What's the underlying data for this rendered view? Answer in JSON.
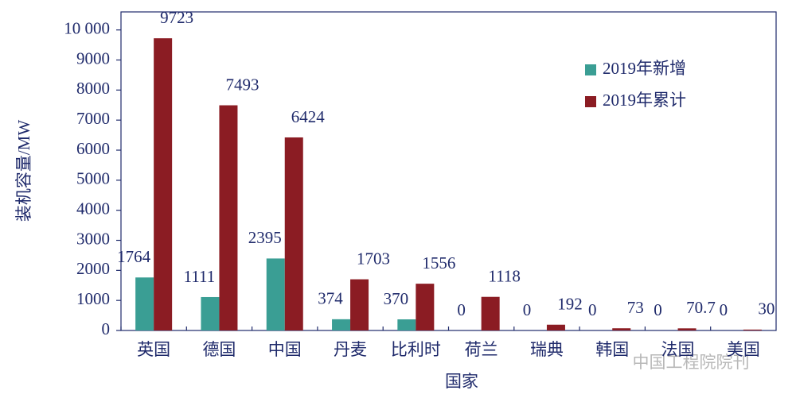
{
  "chart_data": {
    "type": "bar",
    "categories": [
      "英国",
      "德国",
      "中国",
      "丹麦",
      "比利时",
      "荷兰",
      "瑞典",
      "韩国",
      "法国",
      "美国"
    ],
    "series": [
      {
        "name": "2019年新增",
        "color": "#3a9e94",
        "values": [
          1764,
          1111,
          2395,
          374,
          370,
          0,
          0,
          0,
          0,
          0
        ]
      },
      {
        "name": "2019年累计",
        "color": "#8b1c23",
        "values": [
          9723,
          7493,
          6424,
          1703,
          1556,
          1118,
          192,
          73,
          70.7,
          30
        ]
      }
    ],
    "y_label": "装机容量/MW",
    "x_label": "国家",
    "ylim": [
      0,
      10600
    ],
    "yticks": [
      0,
      1000,
      2000,
      3000,
      4000,
      5000,
      6000,
      7000,
      8000,
      9000,
      {
        "value": 10000,
        "label": "10 000"
      }
    ],
    "watermark": "中国工程院院刊"
  }
}
